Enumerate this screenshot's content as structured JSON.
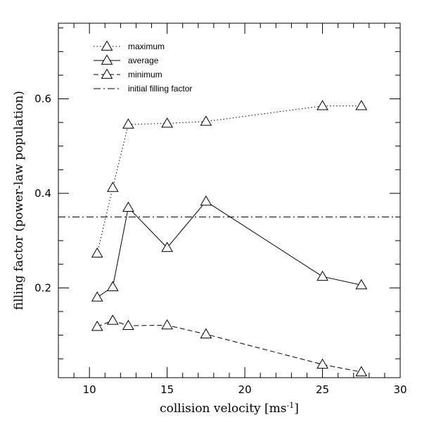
{
  "chart_data": {
    "type": "line",
    "title": "",
    "xlabel": "collision velocity [ms",
    "xlabel_sup": "-1",
    "xlabel_close": "]",
    "ylabel": "filling factor (power-law population)",
    "xlim": [
      8,
      30
    ],
    "ylim": [
      0.01,
      0.76
    ],
    "x_ticks": [
      10,
      15,
      20,
      25,
      30
    ],
    "y_ticks": [
      0.2,
      0.4,
      0.6
    ],
    "x_tick_labels": [
      "10",
      "15",
      "20",
      "25",
      "30"
    ],
    "y_tick_labels": [
      "0.2",
      "0.4",
      "0.6"
    ],
    "x_minor_step": 1,
    "y_minor_step": 0.05,
    "legend_position": "top-left",
    "series": [
      {
        "name": "maximum",
        "style": "dotted",
        "x": [
          10.5,
          11.5,
          12.5,
          15,
          17.5,
          25,
          27.5
        ],
        "y": [
          0.273,
          0.412,
          0.546,
          0.548,
          0.552,
          0.585,
          0.585
        ]
      },
      {
        "name": "average",
        "style": "solid",
        "x": [
          10.5,
          11.5,
          12.5,
          15,
          17.5,
          25,
          27.5
        ],
        "y": [
          0.18,
          0.202,
          0.37,
          0.285,
          0.383,
          0.224,
          0.206
        ]
      },
      {
        "name": "minimum",
        "style": "dashed",
        "x": [
          10.5,
          11.5,
          12.5,
          15,
          17.5,
          25,
          27.5
        ],
        "y": [
          0.118,
          0.131,
          0.12,
          0.121,
          0.102,
          0.038,
          0.022
        ]
      }
    ],
    "reference_lines": [
      {
        "name": "initial filling factor",
        "style": "dashdot",
        "y": 0.35
      }
    ]
  }
}
